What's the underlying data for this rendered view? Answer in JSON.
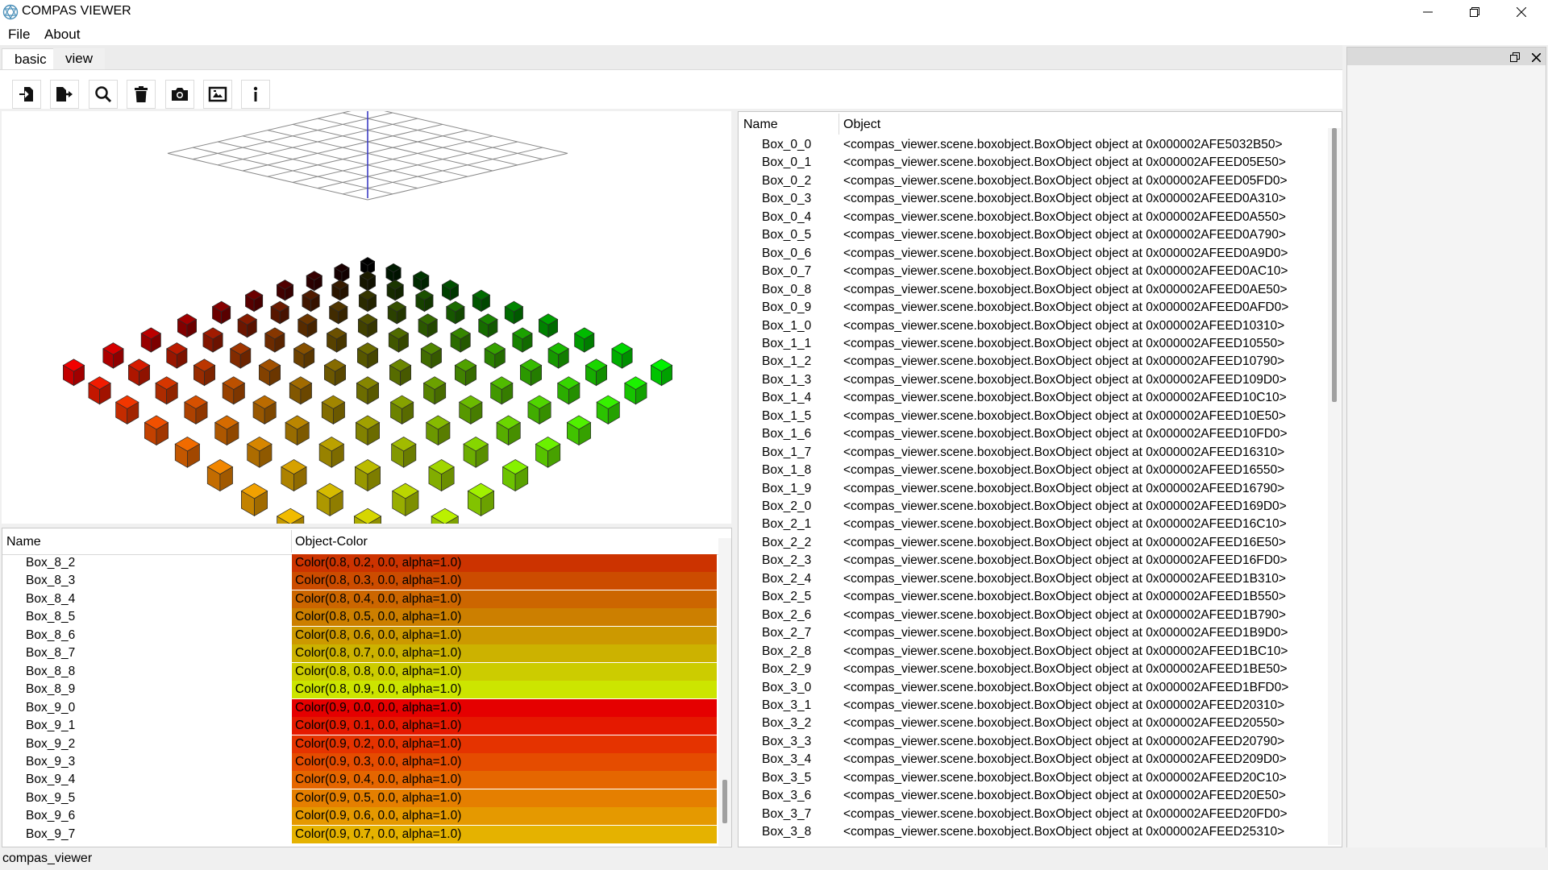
{
  "window": {
    "title": "COMPAS VIEWER",
    "minimize_icon": "minimize-icon",
    "maximize_icon": "restore-icon",
    "close_icon": "close-icon"
  },
  "menu": [
    "File",
    "About"
  ],
  "tabs": [
    "basic",
    "view"
  ],
  "toolbar": {
    "icons": [
      "import-icon",
      "export-icon",
      "search-icon",
      "delete-icon",
      "camera-icon",
      "screenshot-icon",
      "info-icon"
    ]
  },
  "scene_table": {
    "headers": [
      "Name",
      "Object"
    ],
    "rows": [
      [
        "Box_0_0",
        "<compas_viewer.scene.boxobject.BoxObject object at 0x000002AFE5032B50>"
      ],
      [
        "Box_0_1",
        "<compas_viewer.scene.boxobject.BoxObject object at 0x000002AFEED05E50>"
      ],
      [
        "Box_0_2",
        "<compas_viewer.scene.boxobject.BoxObject object at 0x000002AFEED05FD0>"
      ],
      [
        "Box_0_3",
        "<compas_viewer.scene.boxobject.BoxObject object at 0x000002AFEED0A310>"
      ],
      [
        "Box_0_4",
        "<compas_viewer.scene.boxobject.BoxObject object at 0x000002AFEED0A550>"
      ],
      [
        "Box_0_5",
        "<compas_viewer.scene.boxobject.BoxObject object at 0x000002AFEED0A790>"
      ],
      [
        "Box_0_6",
        "<compas_viewer.scene.boxobject.BoxObject object at 0x000002AFEED0A9D0>"
      ],
      [
        "Box_0_7",
        "<compas_viewer.scene.boxobject.BoxObject object at 0x000002AFEED0AC10>"
      ],
      [
        "Box_0_8",
        "<compas_viewer.scene.boxobject.BoxObject object at 0x000002AFEED0AE50>"
      ],
      [
        "Box_0_9",
        "<compas_viewer.scene.boxobject.BoxObject object at 0x000002AFEED0AFD0>"
      ],
      [
        "Box_1_0",
        "<compas_viewer.scene.boxobject.BoxObject object at 0x000002AFEED10310>"
      ],
      [
        "Box_1_1",
        "<compas_viewer.scene.boxobject.BoxObject object at 0x000002AFEED10550>"
      ],
      [
        "Box_1_2",
        "<compas_viewer.scene.boxobject.BoxObject object at 0x000002AFEED10790>"
      ],
      [
        "Box_1_3",
        "<compas_viewer.scene.boxobject.BoxObject object at 0x000002AFEED109D0>"
      ],
      [
        "Box_1_4",
        "<compas_viewer.scene.boxobject.BoxObject object at 0x000002AFEED10C10>"
      ],
      [
        "Box_1_5",
        "<compas_viewer.scene.boxobject.BoxObject object at 0x000002AFEED10E50>"
      ],
      [
        "Box_1_6",
        "<compas_viewer.scene.boxobject.BoxObject object at 0x000002AFEED10FD0>"
      ],
      [
        "Box_1_7",
        "<compas_viewer.scene.boxobject.BoxObject object at 0x000002AFEED16310>"
      ],
      [
        "Box_1_8",
        "<compas_viewer.scene.boxobject.BoxObject object at 0x000002AFEED16550>"
      ],
      [
        "Box_1_9",
        "<compas_viewer.scene.boxobject.BoxObject object at 0x000002AFEED16790>"
      ],
      [
        "Box_2_0",
        "<compas_viewer.scene.boxobject.BoxObject object at 0x000002AFEED169D0>"
      ],
      [
        "Box_2_1",
        "<compas_viewer.scene.boxobject.BoxObject object at 0x000002AFEED16C10>"
      ],
      [
        "Box_2_2",
        "<compas_viewer.scene.boxobject.BoxObject object at 0x000002AFEED16E50>"
      ],
      [
        "Box_2_3",
        "<compas_viewer.scene.boxobject.BoxObject object at 0x000002AFEED16FD0>"
      ],
      [
        "Box_2_4",
        "<compas_viewer.scene.boxobject.BoxObject object at 0x000002AFEED1B310>"
      ],
      [
        "Box_2_5",
        "<compas_viewer.scene.boxobject.BoxObject object at 0x000002AFEED1B550>"
      ],
      [
        "Box_2_6",
        "<compas_viewer.scene.boxobject.BoxObject object at 0x000002AFEED1B790>"
      ],
      [
        "Box_2_7",
        "<compas_viewer.scene.boxobject.BoxObject object at 0x000002AFEED1B9D0>"
      ],
      [
        "Box_2_8",
        "<compas_viewer.scene.boxobject.BoxObject object at 0x000002AFEED1BC10>"
      ],
      [
        "Box_2_9",
        "<compas_viewer.scene.boxobject.BoxObject object at 0x000002AFEED1BE50>"
      ],
      [
        "Box_3_0",
        "<compas_viewer.scene.boxobject.BoxObject object at 0x000002AFEED1BFD0>"
      ],
      [
        "Box_3_1",
        "<compas_viewer.scene.boxobject.BoxObject object at 0x000002AFEED20310>"
      ],
      [
        "Box_3_2",
        "<compas_viewer.scene.boxobject.BoxObject object at 0x000002AFEED20550>"
      ],
      [
        "Box_3_3",
        "<compas_viewer.scene.boxobject.BoxObject object at 0x000002AFEED20790>"
      ],
      [
        "Box_3_4",
        "<compas_viewer.scene.boxobject.BoxObject object at 0x000002AFEED209D0>"
      ],
      [
        "Box_3_5",
        "<compas_viewer.scene.boxobject.BoxObject object at 0x000002AFEED20C10>"
      ],
      [
        "Box_3_6",
        "<compas_viewer.scene.boxobject.BoxObject object at 0x000002AFEED20E50>"
      ],
      [
        "Box_3_7",
        "<compas_viewer.scene.boxobject.BoxObject object at 0x000002AFEED20FD0>"
      ],
      [
        "Box_3_8",
        "<compas_viewer.scene.boxobject.BoxObject object at 0x000002AFEED25310>"
      ]
    ]
  },
  "color_table": {
    "headers": [
      "Name",
      "Object-Color"
    ],
    "rows": [
      {
        "name": "Box_8_2",
        "value": "Color(0.8, 0.2, 0.0, alpha=1.0)",
        "color": "#cc3300"
      },
      {
        "name": "Box_8_3",
        "value": "Color(0.8, 0.3, 0.0, alpha=1.0)",
        "color": "#cc4c00"
      },
      {
        "name": "Box_8_4",
        "value": "Color(0.8, 0.4, 0.0, alpha=1.0)",
        "color": "#cc6600"
      },
      {
        "name": "Box_8_5",
        "value": "Color(0.8, 0.5, 0.0, alpha=1.0)",
        "color": "#cc7f00"
      },
      {
        "name": "Box_8_6",
        "value": "Color(0.8, 0.6, 0.0, alpha=1.0)",
        "color": "#cc9900"
      },
      {
        "name": "Box_8_7",
        "value": "Color(0.8, 0.7, 0.0, alpha=1.0)",
        "color": "#ccb200"
      },
      {
        "name": "Box_8_8",
        "value": "Color(0.8, 0.8, 0.0, alpha=1.0)",
        "color": "#cccc00"
      },
      {
        "name": "Box_8_9",
        "value": "Color(0.8, 0.9, 0.0, alpha=1.0)",
        "color": "#cce500"
      },
      {
        "name": "Box_9_0",
        "value": "Color(0.9, 0.0, 0.0, alpha=1.0)",
        "color": "#e50000"
      },
      {
        "name": "Box_9_1",
        "value": "Color(0.9, 0.1, 0.0, alpha=1.0)",
        "color": "#e51900"
      },
      {
        "name": "Box_9_2",
        "value": "Color(0.9, 0.2, 0.0, alpha=1.0)",
        "color": "#e53300"
      },
      {
        "name": "Box_9_3",
        "value": "Color(0.9, 0.3, 0.0, alpha=1.0)",
        "color": "#e54c00"
      },
      {
        "name": "Box_9_4",
        "value": "Color(0.9, 0.4, 0.0, alpha=1.0)",
        "color": "#e56600"
      },
      {
        "name": "Box_9_5",
        "value": "Color(0.9, 0.5, 0.0, alpha=1.0)",
        "color": "#e57f00"
      },
      {
        "name": "Box_9_6",
        "value": "Color(0.9, 0.6, 0.0, alpha=1.0)",
        "color": "#e59900"
      },
      {
        "name": "Box_9_7",
        "value": "Color(0.9, 0.7, 0.0, alpha=1.0)",
        "color": "#e5b200"
      }
    ]
  },
  "dock": {
    "float_icon": "float-icon",
    "close_icon": "close-icon"
  },
  "status": "compas_viewer"
}
